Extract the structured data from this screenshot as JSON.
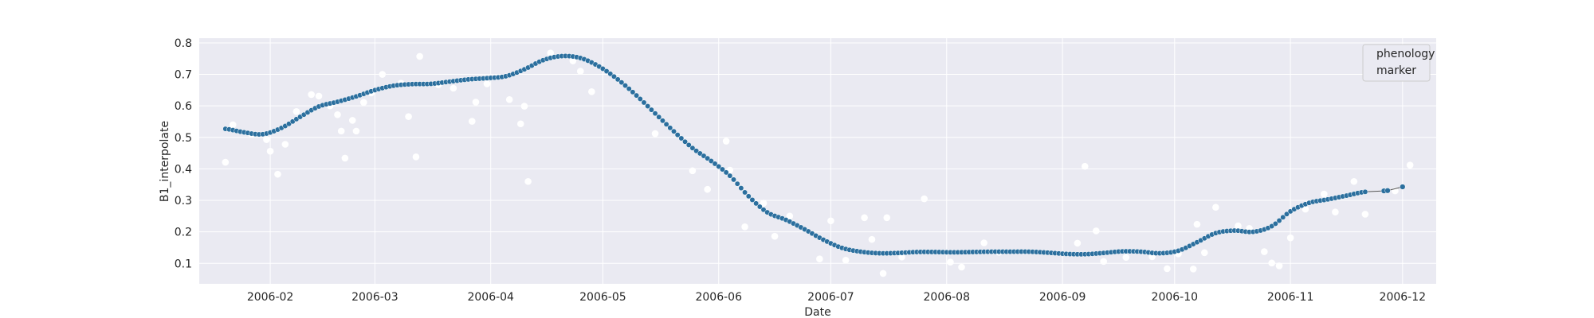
{
  "chart_data": {
    "type": "scatter",
    "xlabel": "Date",
    "ylabel": "B1_interpolate",
    "x_ticks": [
      "2006-02",
      "2006-03",
      "2006-04",
      "2006-05",
      "2006-06",
      "2006-07",
      "2006-08",
      "2006-09",
      "2006-10",
      "2006-11",
      "2006-12"
    ],
    "y_ticks": [
      "0.1",
      "0.2",
      "0.3",
      "0.4",
      "0.5",
      "0.6",
      "0.7",
      "0.8"
    ],
    "xlim": [
      "2006-01-13",
      "2006-12-10"
    ],
    "ylim": [
      0.035,
      0.815
    ],
    "grid": true,
    "legend": {
      "placement": "top-right",
      "entries": [
        "phenology",
        "marker"
      ]
    },
    "colors": {
      "background": "#eaeaf2",
      "grid": "#ffffff",
      "smoothed_marker": "#2b6f9e",
      "observed_marker": "#ffffff"
    },
    "series": [
      {
        "role": "smoothed",
        "points": [
          [
            "2006-01-20",
            0.527
          ],
          [
            "2006-01-25",
            0.516
          ],
          [
            "2006-01-30",
            0.51
          ],
          [
            "2006-02-04",
            0.53
          ],
          [
            "2006-02-09",
            0.565
          ],
          [
            "2006-02-14",
            0.598
          ],
          [
            "2006-02-19",
            0.613
          ],
          [
            "2006-02-24",
            0.63
          ],
          [
            "2006-03-01",
            0.65
          ],
          [
            "2006-03-06",
            0.664
          ],
          [
            "2006-03-11",
            0.669
          ],
          [
            "2006-03-16",
            0.67
          ],
          [
            "2006-03-21",
            0.677
          ],
          [
            "2006-03-26",
            0.684
          ],
          [
            "2006-03-31",
            0.688
          ],
          [
            "2006-04-05",
            0.694
          ],
          [
            "2006-04-10",
            0.716
          ],
          [
            "2006-04-15",
            0.745
          ],
          [
            "2006-04-20",
            0.758
          ],
          [
            "2006-04-25",
            0.752
          ],
          [
            "2006-04-30",
            0.725
          ],
          [
            "2006-05-05",
            0.684
          ],
          [
            "2006-05-10",
            0.633
          ],
          [
            "2006-05-15",
            0.576
          ],
          [
            "2006-05-20",
            0.519
          ],
          [
            "2006-05-25",
            0.466
          ],
          [
            "2006-05-30",
            0.425
          ],
          [
            "2006-06-04",
            0.378
          ],
          [
            "2006-06-09",
            0.313
          ],
          [
            "2006-06-14",
            0.262
          ],
          [
            "2006-06-19",
            0.238
          ],
          [
            "2006-06-24",
            0.208
          ],
          [
            "2006-06-29",
            0.175
          ],
          [
            "2006-07-04",
            0.149
          ],
          [
            "2006-07-09",
            0.137
          ],
          [
            "2006-07-14",
            0.132
          ],
          [
            "2006-07-19",
            0.133
          ],
          [
            "2006-07-24",
            0.136
          ],
          [
            "2006-07-29",
            0.136
          ],
          [
            "2006-08-03",
            0.135
          ],
          [
            "2006-08-08",
            0.136
          ],
          [
            "2006-08-13",
            0.137
          ],
          [
            "2006-08-18",
            0.137
          ],
          [
            "2006-08-23",
            0.137
          ],
          [
            "2006-08-28",
            0.134
          ],
          [
            "2006-09-02",
            0.13
          ],
          [
            "2006-09-07",
            0.129
          ],
          [
            "2006-09-12",
            0.133
          ],
          [
            "2006-09-17",
            0.138
          ],
          [
            "2006-09-22",
            0.137
          ],
          [
            "2006-09-27",
            0.132
          ],
          [
            "2006-10-02",
            0.14
          ],
          [
            "2006-10-07",
            0.167
          ],
          [
            "2006-10-12",
            0.196
          ],
          [
            "2006-10-17",
            0.204
          ],
          [
            "2006-10-22",
            0.2
          ],
          [
            "2006-10-27",
            0.218
          ],
          [
            "2006-11-01",
            0.265
          ],
          [
            "2006-11-06",
            0.292
          ],
          [
            "2006-11-11",
            0.303
          ],
          [
            "2006-11-16",
            0.315
          ],
          [
            "2006-11-21",
            0.327
          ]
        ],
        "tail_points": [
          [
            "2006-11-26",
            0.33
          ],
          [
            "2006-11-27",
            0.331
          ],
          [
            "2006-12-01",
            0.343
          ]
        ]
      },
      {
        "role": "observed",
        "points": [
          [
            "2006-01-20",
            0.421
          ],
          [
            "2006-01-22",
            0.54
          ],
          [
            "2006-01-27",
            0.51
          ],
          [
            "2006-01-31",
            0.493
          ],
          [
            "2006-02-01",
            0.456
          ],
          [
            "2006-02-03",
            0.383
          ],
          [
            "2006-02-05",
            0.478
          ],
          [
            "2006-02-08",
            0.582
          ],
          [
            "2006-02-12",
            0.636
          ],
          [
            "2006-02-14",
            0.631
          ],
          [
            "2006-02-17",
            0.6
          ],
          [
            "2006-02-19",
            0.572
          ],
          [
            "2006-02-20",
            0.52
          ],
          [
            "2006-02-21",
            0.434
          ],
          [
            "2006-02-23",
            0.554
          ],
          [
            "2006-02-24",
            0.52
          ],
          [
            "2006-02-26",
            0.611
          ],
          [
            "2006-02-28",
            0.641
          ],
          [
            "2006-03-03",
            0.7
          ],
          [
            "2006-03-08",
            0.672
          ],
          [
            "2006-03-10",
            0.566
          ],
          [
            "2006-03-12",
            0.438
          ],
          [
            "2006-03-13",
            0.757
          ],
          [
            "2006-03-18",
            0.667
          ],
          [
            "2006-03-22",
            0.656
          ],
          [
            "2006-03-27",
            0.551
          ],
          [
            "2006-03-28",
            0.612
          ],
          [
            "2006-03-31",
            0.67
          ],
          [
            "2006-04-06",
            0.62
          ],
          [
            "2006-04-09",
            0.543
          ],
          [
            "2006-04-10",
            0.599
          ],
          [
            "2006-04-11",
            0.36
          ],
          [
            "2006-04-17",
            0.768
          ],
          [
            "2006-04-23",
            0.743
          ],
          [
            "2006-04-25",
            0.71
          ],
          [
            "2006-04-28",
            0.645
          ],
          [
            "2006-05-15",
            0.512
          ],
          [
            "2006-05-25",
            0.394
          ],
          [
            "2006-05-29",
            0.335
          ],
          [
            "2006-06-03",
            0.488
          ],
          [
            "2006-06-04",
            0.396
          ],
          [
            "2006-06-08",
            0.216
          ],
          [
            "2006-06-13",
            0.291
          ],
          [
            "2006-06-16",
            0.186
          ],
          [
            "2006-06-20",
            0.25
          ],
          [
            "2006-06-28",
            0.114
          ],
          [
            "2006-07-01",
            0.235
          ],
          [
            "2006-07-05",
            0.11
          ],
          [
            "2006-07-10",
            0.245
          ],
          [
            "2006-07-12",
            0.176
          ],
          [
            "2006-07-15",
            0.068
          ],
          [
            "2006-07-16",
            0.245
          ],
          [
            "2006-07-20",
            0.12
          ],
          [
            "2006-07-26",
            0.305
          ],
          [
            "2006-08-02",
            0.104
          ],
          [
            "2006-08-05",
            0.088
          ],
          [
            "2006-08-11",
            0.165
          ],
          [
            "2006-08-15",
            0.135
          ],
          [
            "2006-09-05",
            0.164
          ],
          [
            "2006-09-07",
            0.408
          ],
          [
            "2006-09-10",
            0.203
          ],
          [
            "2006-09-12",
            0.106
          ],
          [
            "2006-09-18",
            0.119
          ],
          [
            "2006-09-25",
            0.121
          ],
          [
            "2006-09-29",
            0.083
          ],
          [
            "2006-10-02",
            0.13
          ],
          [
            "2006-10-06",
            0.082
          ],
          [
            "2006-10-07",
            0.224
          ],
          [
            "2006-10-09",
            0.134
          ],
          [
            "2006-10-12",
            0.278
          ],
          [
            "2006-10-18",
            0.219
          ],
          [
            "2006-10-21",
            0.211
          ],
          [
            "2006-10-25",
            0.137
          ],
          [
            "2006-10-27",
            0.101
          ],
          [
            "2006-10-29",
            0.092
          ],
          [
            "2006-11-01",
            0.181
          ],
          [
            "2006-11-05",
            0.272
          ],
          [
            "2006-11-10",
            0.32
          ],
          [
            "2006-11-13",
            0.263
          ],
          [
            "2006-11-18",
            0.36
          ],
          [
            "2006-11-21",
            0.256
          ],
          [
            "2006-11-29",
            0.33
          ],
          [
            "2006-12-03",
            0.412
          ]
        ]
      }
    ]
  }
}
